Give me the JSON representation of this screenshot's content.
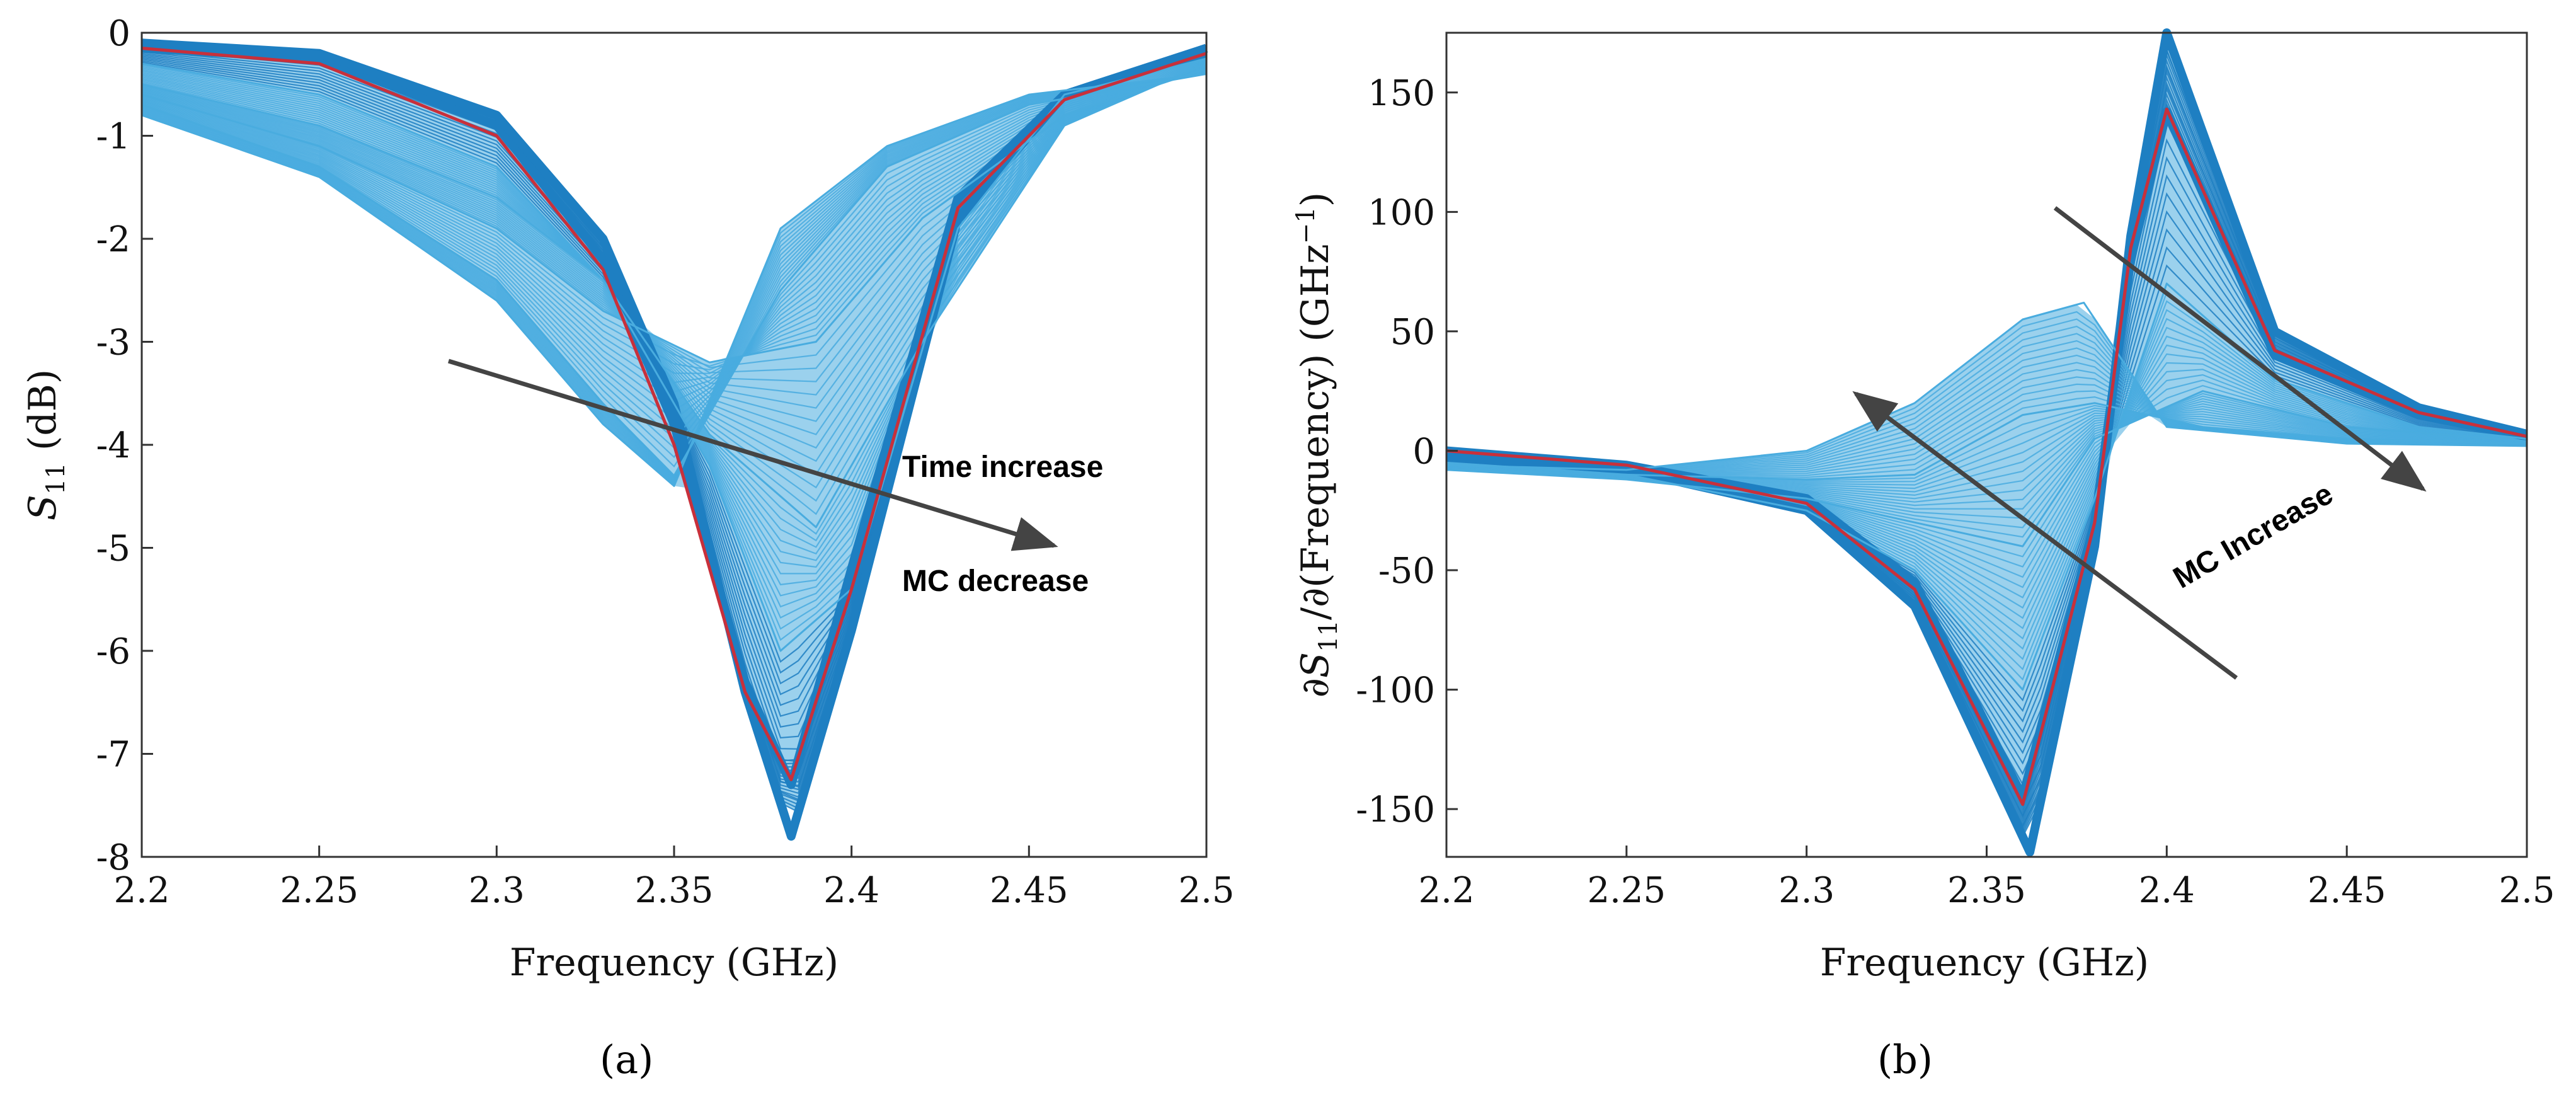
{
  "chart_data": [
    {
      "type": "line",
      "panel_label": "(a)",
      "xlabel": "Frequency (GHz)",
      "ylabel": "S11 (dB)",
      "ylabel_parts": {
        "base": "S",
        "sub": "11",
        "rest": " (dB)"
      },
      "xlim": [
        2.2,
        2.5
      ],
      "ylim": [
        -8,
        0
      ],
      "xticks": [
        "2.2",
        "2.25",
        "2.3",
        "2.35",
        "2.4",
        "2.45",
        "2.5"
      ],
      "yticks": [
        "0",
        "-1",
        "-2",
        "-3",
        "-4",
        "-5",
        "-6",
        "-7",
        "-8"
      ],
      "grid": false,
      "annotations": [
        "Time increase",
        "MC decrease"
      ],
      "series": [
        {
          "x": [
            2.2,
            2.25,
            2.3,
            2.33,
            2.35,
            2.37,
            2.383,
            2.4,
            2.43,
            2.46,
            2.5
          ],
          "values": [
            -0.15,
            -0.25,
            -0.9,
            -2.2,
            -3.8,
            -6.3,
            -7.3,
            -5.2,
            -1.6,
            -0.6,
            -0.15
          ]
        },
        {
          "x": [
            2.2,
            2.25,
            2.3,
            2.33,
            2.35,
            2.37,
            2.383,
            2.4,
            2.43,
            2.46,
            2.5
          ],
          "values": [
            -0.1,
            -0.2,
            -0.8,
            -2.0,
            -3.6,
            -6.4,
            -7.8,
            -5.8,
            -1.8,
            -0.6,
            -0.15
          ]
        },
        {
          "x": [
            2.2,
            2.25,
            2.3,
            2.33,
            2.36,
            2.38,
            2.4,
            2.43,
            2.46,
            2.5
          ],
          "values": [
            -0.3,
            -0.6,
            -1.3,
            -2.4,
            -4.2,
            -6.0,
            -5.4,
            -1.9,
            -0.6,
            -0.25
          ]
        },
        {
          "x": [
            2.2,
            2.25,
            2.3,
            2.33,
            2.36,
            2.39,
            2.42,
            2.46,
            2.5
          ],
          "values": [
            -0.5,
            -0.9,
            -1.6,
            -2.4,
            -3.9,
            -4.8,
            -3.0,
            -0.9,
            -0.3
          ]
        },
        {
          "x": [
            2.2,
            2.25,
            2.3,
            2.33,
            2.36,
            2.39,
            2.42,
            2.46,
            2.5
          ],
          "values": [
            -0.6,
            -1.1,
            -1.9,
            -2.7,
            -3.2,
            -3.0,
            -1.8,
            -0.8,
            -0.35
          ]
        },
        {
          "x": [
            2.2,
            2.25,
            2.3,
            2.33,
            2.35,
            2.38,
            2.41,
            2.45,
            2.5
          ],
          "values": [
            -0.7,
            -1.3,
            -2.4,
            -3.6,
            -4.3,
            -2.5,
            -1.3,
            -0.7,
            -0.4
          ]
        },
        {
          "x": [
            2.2,
            2.25,
            2.3,
            2.33,
            2.35,
            2.38,
            2.41,
            2.45,
            2.5
          ],
          "values": [
            -0.8,
            -1.4,
            -2.6,
            -3.8,
            -4.4,
            -1.9,
            -1.1,
            -0.6,
            -0.4
          ]
        }
      ],
      "highlight": {
        "x": [
          2.2,
          2.25,
          2.3,
          2.33,
          2.35,
          2.37,
          2.383,
          2.4,
          2.43,
          2.46,
          2.5
        ],
        "values": [
          -0.15,
          -0.3,
          -1.0,
          -2.3,
          -4.0,
          -6.4,
          -7.25,
          -5.4,
          -1.7,
          -0.65,
          -0.2
        ]
      },
      "colors": {
        "curves": "#49acdf",
        "dense": "#1e7fc2",
        "highlight": "#c8303b",
        "arrow": "#444444"
      }
    },
    {
      "type": "line",
      "panel_label": "(b)",
      "xlabel": "Frequency (GHz)",
      "ylabel": "∂S11/∂(Frequency) (GHz−1)",
      "ylabel_parts": {
        "d": "∂",
        "base": "S",
        "sub": "11",
        "mid": "/∂(Frequency) (GHz",
        "sup": "−1",
        "end": ")"
      },
      "xlim": [
        2.2,
        2.5
      ],
      "ylim": [
        -170,
        175
      ],
      "xticks": [
        "2.2",
        "2.25",
        "2.3",
        "2.35",
        "2.4",
        "2.45",
        "2.5"
      ],
      "yticks": [
        "150",
        "100",
        "50",
        "0",
        "-50",
        "-100",
        "-150"
      ],
      "grid": false,
      "annotations": [
        "MC Increase"
      ],
      "series": [
        {
          "x": [
            2.2,
            2.25,
            2.3,
            2.33,
            2.36,
            2.38,
            2.39,
            2.4,
            2.43,
            2.47,
            2.5
          ],
          "values": [
            0,
            -6,
            -20,
            -55,
            -145,
            -30,
            80,
            142,
            40,
            15,
            6
          ]
        },
        {
          "x": [
            2.2,
            2.25,
            2.3,
            2.33,
            2.362,
            2.38,
            2.39,
            2.4,
            2.43,
            2.47,
            2.5
          ],
          "values": [
            -2,
            -8,
            -25,
            -65,
            -168,
            -40,
            90,
            175,
            50,
            18,
            7
          ]
        },
        {
          "x": [
            2.2,
            2.25,
            2.3,
            2.33,
            2.36,
            2.38,
            2.4,
            2.43,
            2.47,
            2.5
          ],
          "values": [
            -5,
            -10,
            -25,
            -50,
            -100,
            -20,
            70,
            30,
            10,
            5
          ]
        },
        {
          "x": [
            2.2,
            2.25,
            2.3,
            2.33,
            2.36,
            2.38,
            2.41,
            2.45,
            2.5
          ],
          "values": [
            -8,
            -12,
            -20,
            -30,
            -40,
            5,
            25,
            10,
            4
          ]
        },
        {
          "x": [
            2.2,
            2.25,
            2.3,
            2.33,
            2.36,
            2.38,
            2.41,
            2.45,
            2.5
          ],
          "values": [
            -8,
            -10,
            -12,
            -10,
            15,
            20,
            10,
            5,
            3
          ]
        },
        {
          "x": [
            2.2,
            2.25,
            2.3,
            2.33,
            2.36,
            2.377,
            2.4,
            2.45,
            2.5
          ],
          "values": [
            -6,
            -8,
            0,
            20,
            55,
            62,
            10,
            3,
            2
          ]
        }
      ],
      "highlight": {
        "x": [
          2.2,
          2.25,
          2.3,
          2.33,
          2.36,
          2.38,
          2.39,
          2.4,
          2.43,
          2.47,
          2.5
        ],
        "values": [
          0,
          -6,
          -22,
          -58,
          -148,
          -30,
          85,
          143,
          42,
          16,
          6
        ]
      },
      "colors": {
        "curves": "#49acdf",
        "dense": "#1e7fc2",
        "highlight": "#c8303b",
        "arrow": "#444444"
      }
    }
  ]
}
